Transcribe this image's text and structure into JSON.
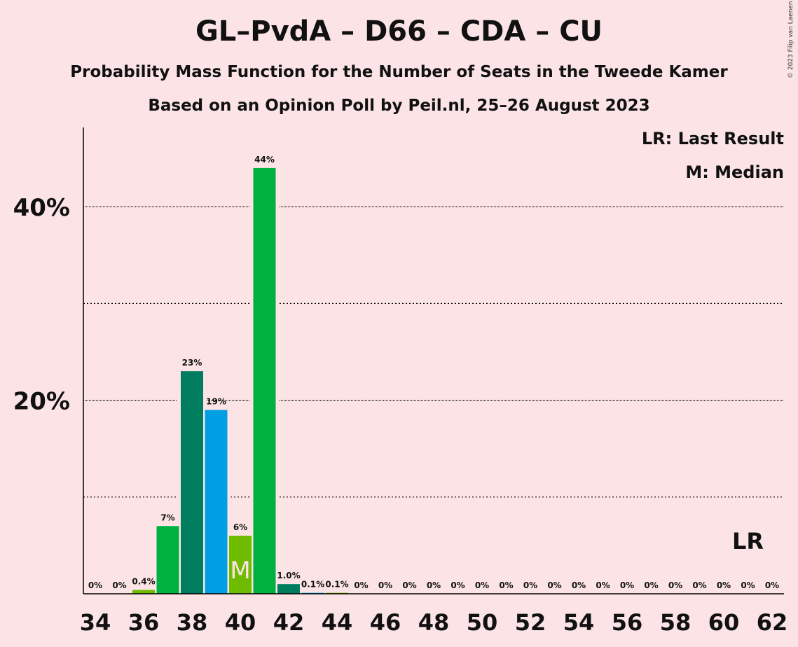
{
  "chart_data": {
    "type": "bar",
    "title": "GL–PvdA – D66 – CDA – CU",
    "subtitle": "Probability Mass Function for the Number of Seats in the Tweede Kamer",
    "subtitle2": "Based on an Opinion Poll by Peil.nl, 25–26 August 2023",
    "copyright": "© 2023 Filip van Laenen",
    "legend": {
      "lr": "LR: Last Result",
      "median": "M: Median"
    },
    "x": [
      34,
      35,
      36,
      37,
      38,
      39,
      40,
      41,
      42,
      43,
      44,
      45,
      46,
      47,
      48,
      49,
      50,
      51,
      52,
      53,
      54,
      55,
      56,
      57,
      58,
      59,
      60,
      61,
      62
    ],
    "values": [
      0,
      0,
      0.4,
      7,
      23,
      19,
      6,
      44,
      1.0,
      0.1,
      0.1,
      0,
      0,
      0,
      0,
      0,
      0,
      0,
      0,
      0,
      0,
      0,
      0,
      0,
      0,
      0,
      0,
      0,
      0
    ],
    "labels": [
      "0%",
      "0%",
      "0.4%",
      "7%",
      "23%",
      "19%",
      "6%",
      "44%",
      "1.0%",
      "0.1%",
      "0.1%",
      "0%",
      "0%",
      "0%",
      "0%",
      "0%",
      "0%",
      "0%",
      "0%",
      "0%",
      "0%",
      "0%",
      "0%",
      "0%",
      "0%",
      "0%",
      "0%",
      "0%",
      "0%"
    ],
    "bar_colors": [
      "#6fbb00",
      "#6fbb00",
      "#6fbb00",
      "#00b140",
      "#007c5e",
      "#009fe3",
      "#6fbb00",
      "#00b140",
      "#007c5e",
      "#009fe3",
      "#6fbb00",
      "#00b140",
      "#007c5e",
      "#009fe3",
      "#6fbb00",
      "#00b140",
      "#007c5e",
      "#009fe3",
      "#6fbb00",
      "#00b140",
      "#007c5e",
      "#009fe3",
      "#6fbb00",
      "#00b140",
      "#007c5e",
      "#009fe3",
      "#6fbb00",
      "#00b140",
      "#007c5e"
    ],
    "xticks": [
      34,
      36,
      38,
      40,
      42,
      44,
      46,
      48,
      50,
      52,
      54,
      56,
      58,
      60,
      62
    ],
    "ytick_labels": [
      {
        "value": 20,
        "label": "20%"
      },
      {
        "value": 40,
        "label": "40%"
      }
    ],
    "minor_gridlines": [
      10,
      30
    ],
    "ylim": [
      0,
      48
    ],
    "median_seat": 40,
    "median_marker": "M",
    "last_result_seat": 61,
    "last_result_marker": "LR"
  }
}
